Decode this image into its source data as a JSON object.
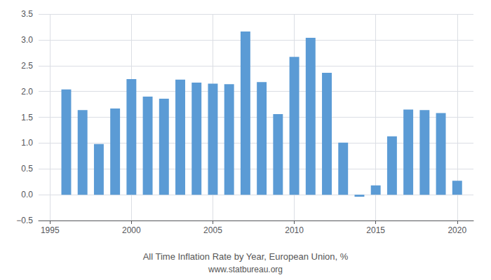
{
  "chart_data": {
    "type": "bar",
    "title": "All Time Inflation Rate by Year, European Union, %",
    "subtitle": "www.statbureau.org",
    "x": [
      1996,
      1997,
      1998,
      1999,
      2000,
      2001,
      2002,
      2003,
      2004,
      2005,
      2006,
      2007,
      2008,
      2009,
      2010,
      2011,
      2012,
      2013,
      2014,
      2015,
      2016,
      2017,
      2018,
      2019,
      2020
    ],
    "values": [
      2.04,
      1.64,
      0.98,
      1.67,
      2.24,
      1.9,
      1.86,
      2.23,
      2.17,
      2.15,
      2.14,
      3.16,
      2.18,
      1.56,
      2.67,
      3.04,
      2.36,
      1.01,
      -0.04,
      0.18,
      1.13,
      1.65,
      1.64,
      1.58,
      0.27
    ],
    "color": "#5b9bd5",
    "xlim": [
      1994.3,
      2021.0
    ],
    "xticks": [
      1995,
      2000,
      2005,
      2010,
      2015,
      2020
    ],
    "ylim": [
      -0.5,
      3.5
    ],
    "yticks": [
      {
        "value": -0.5,
        "label": "−0.5"
      },
      {
        "value": 0.0,
        "label": "0.0"
      },
      0.5,
      {
        "value": 1.0,
        "label": "1.0"
      },
      1.5,
      {
        "value": 2.0,
        "label": "2.0"
      },
      2.5,
      {
        "value": 3.0,
        "label": "3.0"
      },
      3.5
    ],
    "grid": true
  }
}
